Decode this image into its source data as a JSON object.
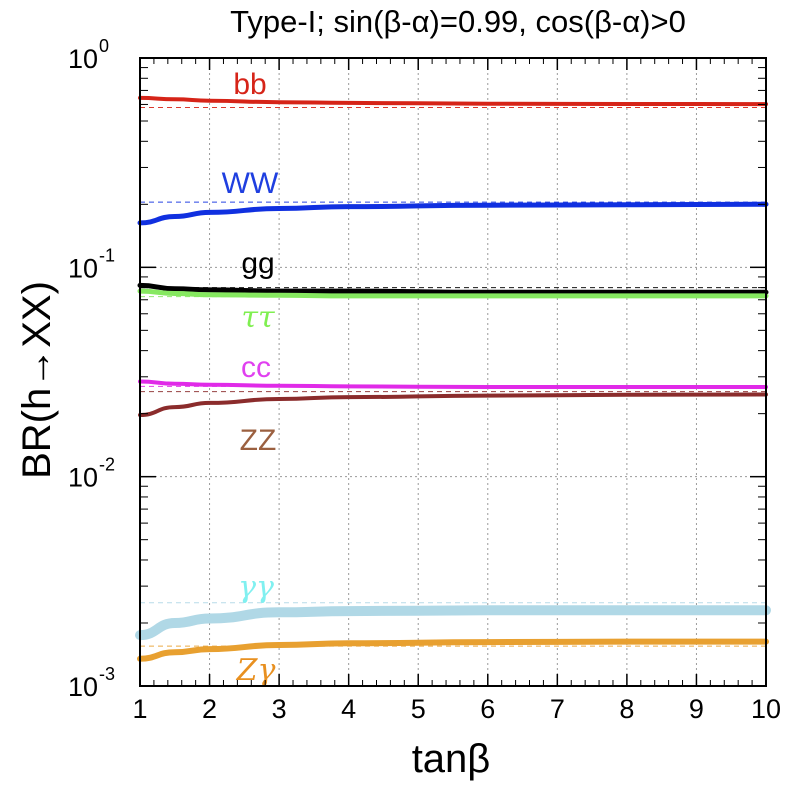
{
  "chart_data": {
    "type": "line",
    "title": "Type-I; sin(β-α)=0.99, cos(β-α)>0",
    "xlabel": "tanβ",
    "ylabel": "BR(h→XX)",
    "xlim": [
      1,
      10
    ],
    "ylim": [
      0.001,
      1
    ],
    "yscale": "log",
    "grid": true,
    "x_ticks": [
      "1",
      "2",
      "3",
      "4",
      "5",
      "6",
      "7",
      "8",
      "9",
      "10"
    ],
    "y_ticks": [
      {
        "base": "10",
        "exp": "0"
      },
      {
        "base": "10",
        "exp": "-1"
      },
      {
        "base": "10",
        "exp": "-2"
      },
      {
        "base": "10",
        "exp": "-3"
      }
    ],
    "series": [
      {
        "name": "bb",
        "label": "bb",
        "color": "#d62418",
        "sm": 0.58,
        "x": [
          1,
          1.5,
          2,
          3,
          4,
          6,
          8,
          10
        ],
        "values": [
          0.645,
          0.635,
          0.625,
          0.615,
          0.61,
          0.605,
          0.603,
          0.602
        ],
        "thickness": 4
      },
      {
        "name": "WW",
        "label": "WW",
        "color": "#1030e0",
        "sm": 0.205,
        "x": [
          1,
          1.5,
          2,
          3,
          4,
          6,
          8,
          10
        ],
        "values": [
          0.163,
          0.175,
          0.183,
          0.191,
          0.195,
          0.198,
          0.199,
          0.2
        ],
        "thickness": 5
      },
      {
        "name": "gg",
        "label": "gg",
        "color": "#000000",
        "sm": 0.08,
        "x": [
          1,
          1.5,
          2,
          3,
          4,
          6,
          8,
          10
        ],
        "values": [
          0.082,
          0.079,
          0.078,
          0.077,
          0.077,
          0.076,
          0.076,
          0.076
        ],
        "thickness": 5
      },
      {
        "name": "tautau",
        "label": "ττ",
        "color": "#86e860",
        "sm": 0.0725,
        "x": [
          1,
          1.5,
          2,
          3,
          4,
          6,
          8,
          10
        ],
        "values": [
          0.077,
          0.075,
          0.074,
          0.0735,
          0.073,
          0.073,
          0.073,
          0.073
        ],
        "thickness": 5
      },
      {
        "name": "cc",
        "label": "cc",
        "color": "#e02ae8",
        "sm": 0.027,
        "x": [
          1,
          1.5,
          2,
          3,
          4,
          6,
          8,
          10
        ],
        "values": [
          0.0285,
          0.0278,
          0.0275,
          0.0272,
          0.027,
          0.0268,
          0.0268,
          0.0268
        ],
        "thickness": 4
      },
      {
        "name": "ZZ",
        "label": "ZZ",
        "color": "#8b2c2c",
        "sm": 0.0255,
        "x": [
          1,
          1.5,
          2,
          3,
          4,
          6,
          8,
          10
        ],
        "values": [
          0.0197,
          0.0215,
          0.0225,
          0.0235,
          0.024,
          0.0244,
          0.0246,
          0.0247
        ],
        "thickness": 4
      },
      {
        "name": "gammagamma",
        "label": "γγ",
        "color": "#b0d8e6",
        "sm": 0.0025,
        "x": [
          1,
          1.5,
          2,
          3,
          4,
          6,
          8,
          10
        ],
        "values": [
          0.00175,
          0.002,
          0.0021,
          0.00225,
          0.00228,
          0.0023,
          0.0023,
          0.0023
        ],
        "thickness": 10
      },
      {
        "name": "Zgamma",
        "label": "Zγ",
        "color": "#e8a030",
        "sm": 0.00155,
        "x": [
          1,
          1.5,
          2,
          3,
          4,
          6,
          8,
          10
        ],
        "values": [
          0.00135,
          0.00145,
          0.0015,
          0.00157,
          0.0016,
          0.00162,
          0.00163,
          0.00163
        ],
        "thickness": 6
      }
    ],
    "label_colors": {
      "bb": "#d62418",
      "WW": "#1f3fe0",
      "gg": "#000000",
      "tautau": "#7fef50",
      "cc": "#e040f0",
      "ZZ": "#9b6040",
      "gammagamma": "#80f0f0",
      "Zgamma": "#e89020"
    }
  }
}
